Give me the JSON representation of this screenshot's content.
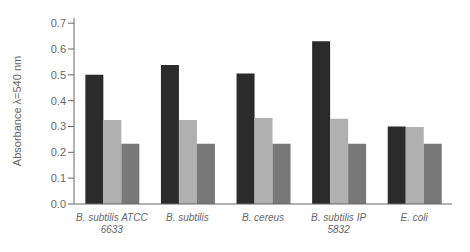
{
  "chart_data": {
    "type": "bar",
    "categories": [
      "B. subtilis ATCC\n6633",
      "B. subtilis",
      "B. cereus",
      "B. subtilis IP\n5832",
      "E. coli"
    ],
    "series": [
      {
        "color": "#2b2b2b",
        "values": [
          0.5,
          0.538,
          0.505,
          0.63,
          0.3
        ]
      },
      {
        "color": "#b0b0b0",
        "values": [
          0.325,
          0.325,
          0.333,
          0.33,
          0.298
        ]
      },
      {
        "color": "#787878",
        "values": [
          0.233,
          0.233,
          0.233,
          0.233,
          0.233
        ]
      }
    ],
    "ylabel": "Absorbance λ=540 nm",
    "ylim": [
      0,
      0.72
    ],
    "yticks": [
      {
        "value": 0,
        "label": "0.0"
      },
      0.1,
      0.2,
      0.3,
      0.4,
      0.5,
      0.6,
      0.7
    ],
    "grid": false
  }
}
